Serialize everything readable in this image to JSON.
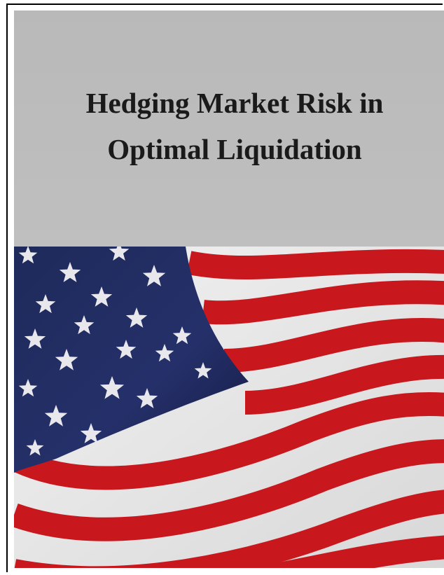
{
  "cover": {
    "title_lines": [
      "Hedging Market Risk in",
      "Optimal Liquidation"
    ]
  }
}
